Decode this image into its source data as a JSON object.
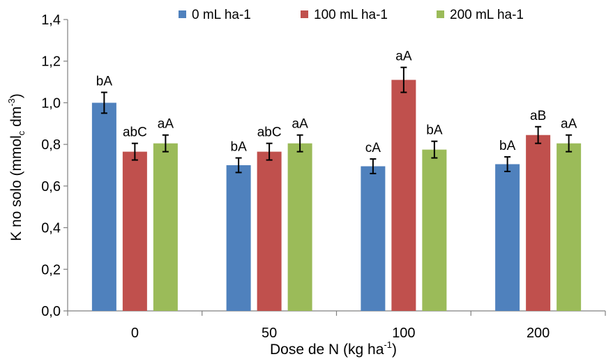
{
  "chart_data": {
    "type": "bar",
    "categories": [
      "0",
      "50",
      "100",
      "200"
    ],
    "xlabel": {
      "main": "Dose de N (kg ha",
      "sup": "-1",
      "tail": ")"
    },
    "ylabel": {
      "main": "K no solo (mmol",
      "sub": "c",
      "mid": " dm",
      "sup": "-3",
      "tail": ")"
    },
    "ylim": [
      0,
      1.4
    ],
    "yticks": [
      "0,0",
      "0,2",
      "0,4",
      "0,6",
      "0,8",
      "1,0",
      "1,2",
      "1,4"
    ],
    "grid": false,
    "legend_position": "top",
    "series": [
      {
        "name": "0 mL ha-1",
        "color": "#4f81bd",
        "values": [
          1.0,
          0.7,
          0.695,
          0.705
        ],
        "errors": [
          0.05,
          0.035,
          0.035,
          0.035
        ],
        "labels": [
          "bA",
          "bA",
          "cA",
          "bA"
        ]
      },
      {
        "name": "100 mL ha-1",
        "color": "#c0504d",
        "values": [
          0.765,
          0.765,
          1.11,
          0.845
        ],
        "errors": [
          0.04,
          0.04,
          0.06,
          0.04
        ],
        "labels": [
          "abC",
          "abC",
          "aA",
          "aB"
        ]
      },
      {
        "name": "200 mL ha-1",
        "color": "#9bbb59",
        "values": [
          0.805,
          0.805,
          0.775,
          0.805
        ],
        "errors": [
          0.04,
          0.04,
          0.04,
          0.04
        ],
        "labels": [
          "aA",
          "aA",
          "bA",
          "aA"
        ]
      }
    ]
  }
}
